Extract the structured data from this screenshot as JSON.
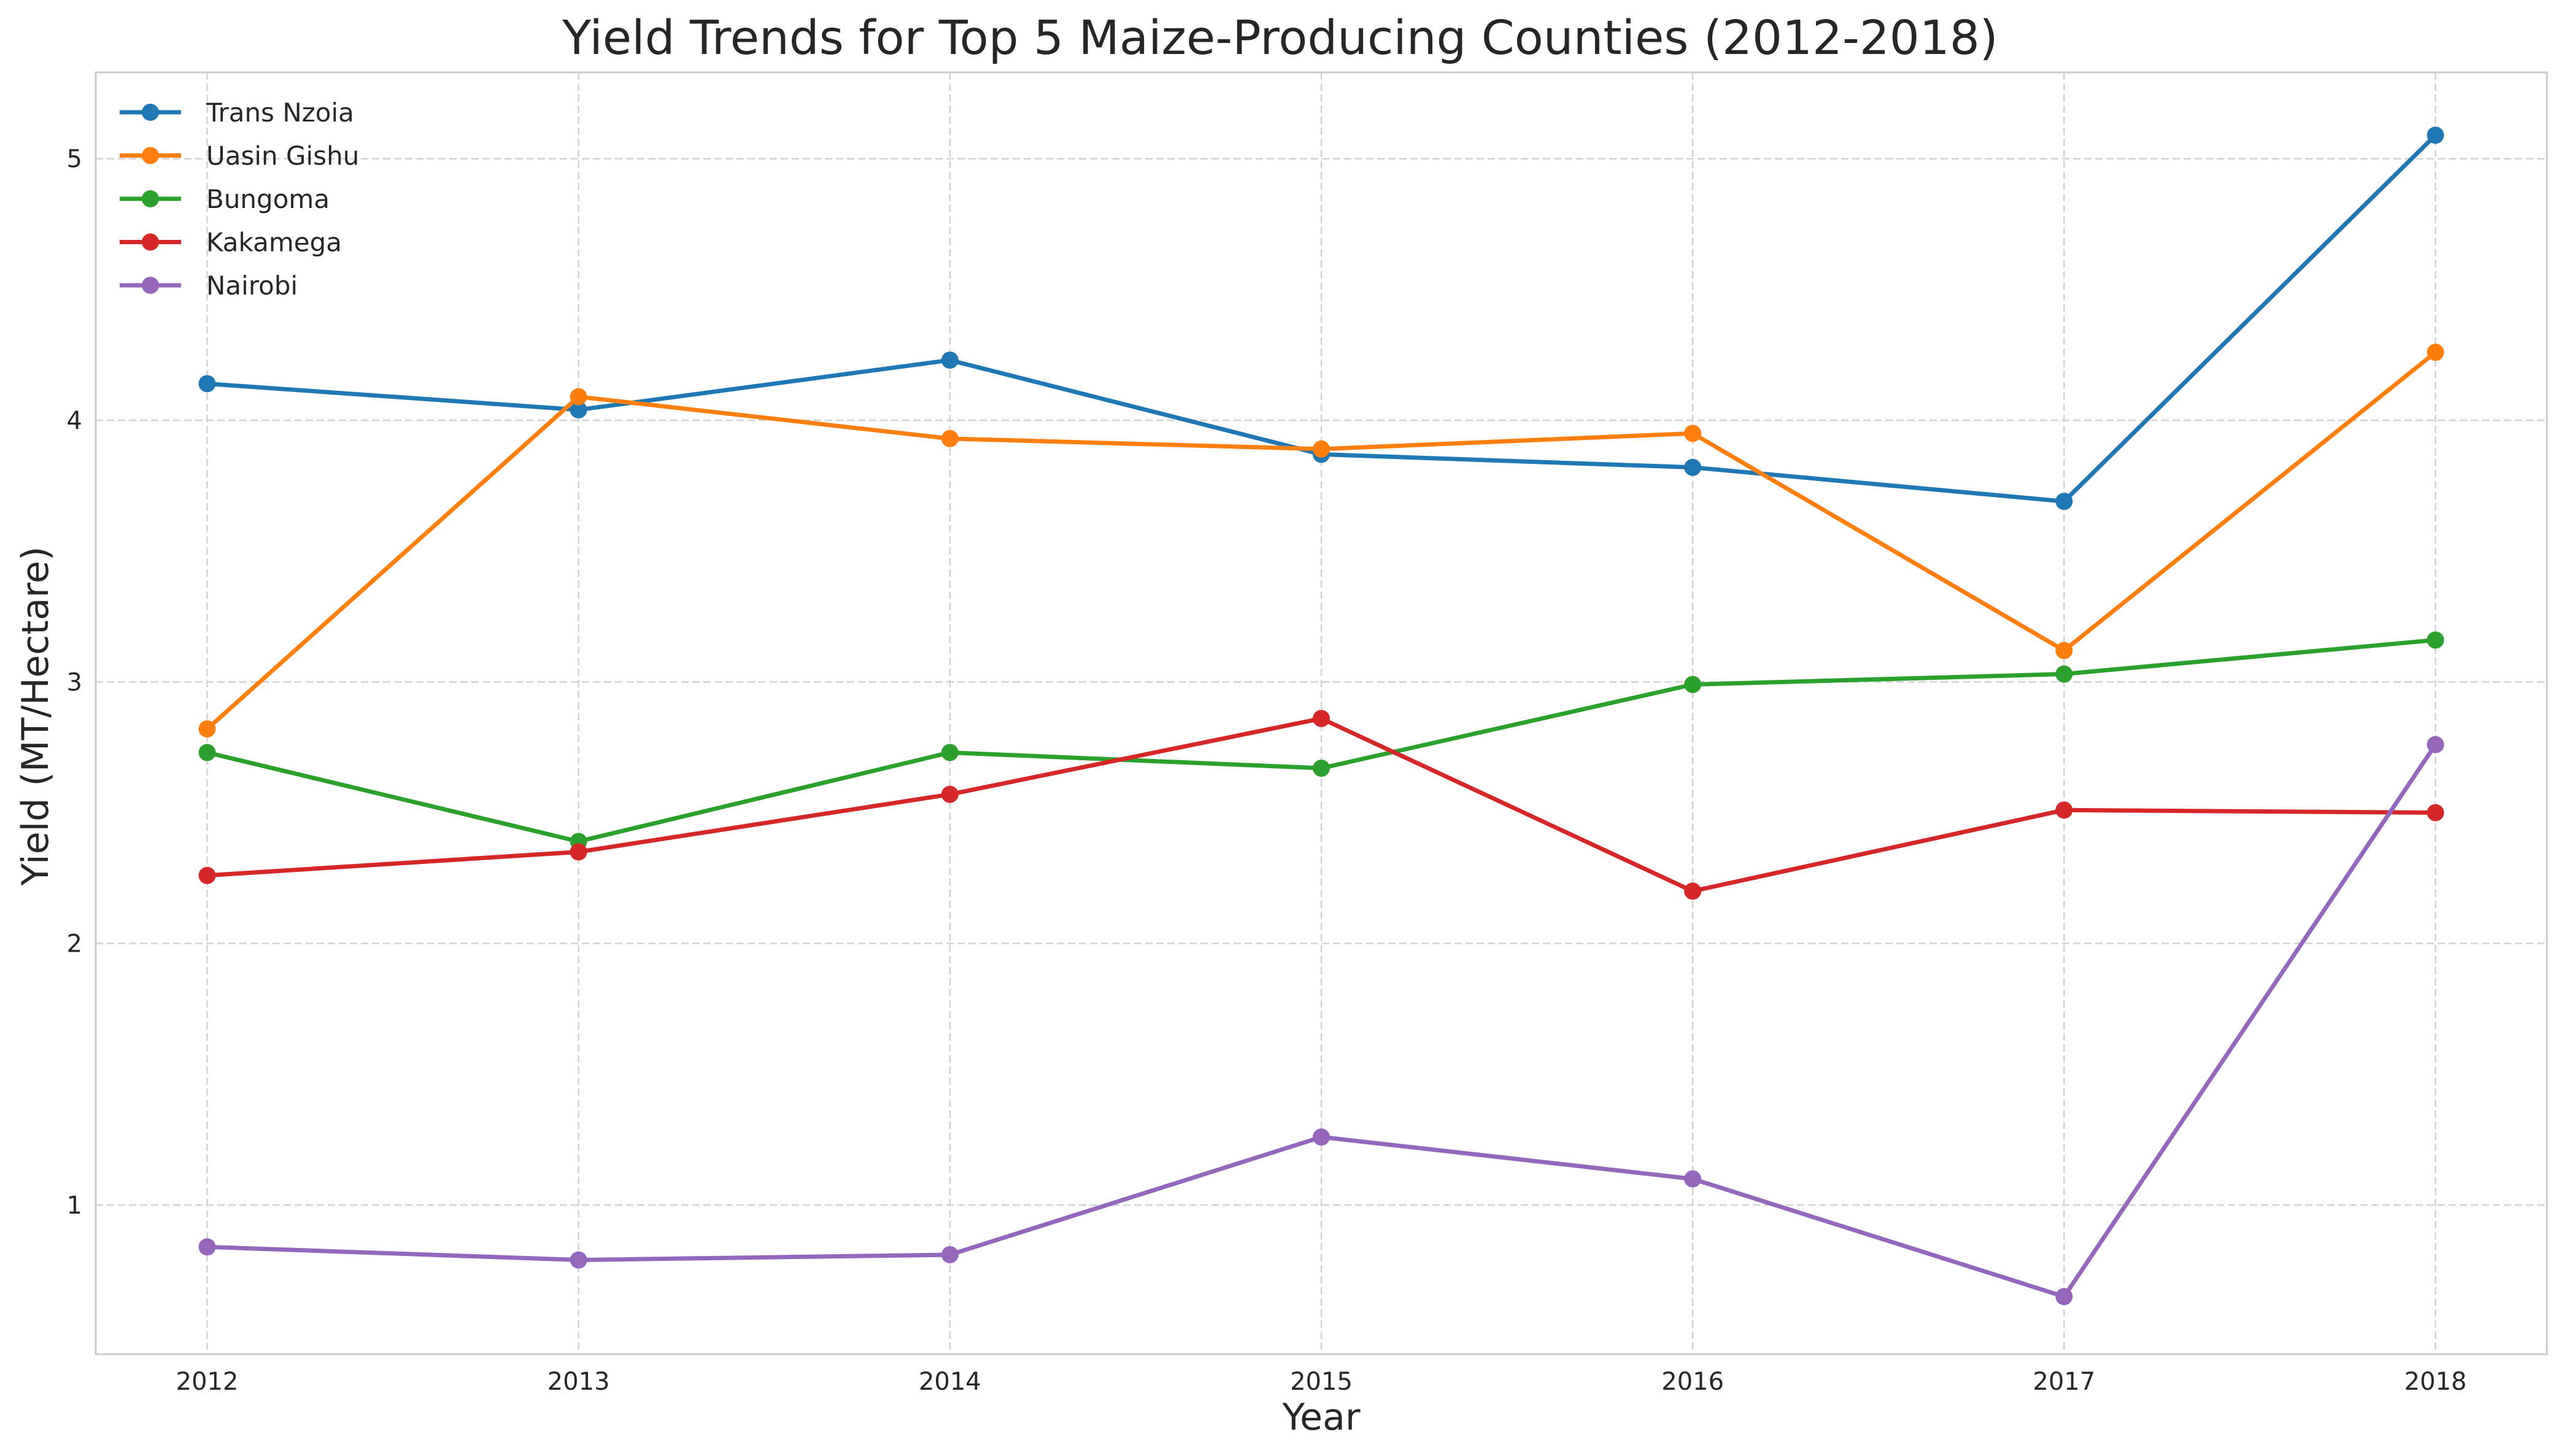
{
  "chart_data": {
    "type": "line",
    "title": "Yield Trends for Top 5 Maize-Producing Counties (2012-2018)",
    "xlabel": "Year",
    "ylabel": "Yield (MT/Hectare)",
    "x": [
      2012,
      2013,
      2014,
      2015,
      2016,
      2017,
      2018
    ],
    "x_tick_labels": [
      "2012",
      "2013",
      "2014",
      "2015",
      "2016",
      "2017",
      "2018"
    ],
    "y_ticks": [
      1,
      2,
      3,
      4,
      5
    ],
    "y_tick_labels": [
      "1",
      "2",
      "3",
      "4",
      "5"
    ],
    "xlim": [
      2011.7,
      2018.3
    ],
    "ylim": [
      0.43,
      5.33
    ],
    "grid": true,
    "legend_position": "top-left",
    "series": [
      {
        "name": "Trans Nzoia",
        "color": "#1f77b4",
        "values": [
          4.14,
          4.04,
          4.23,
          3.87,
          3.82,
          3.69,
          5.09
        ]
      },
      {
        "name": "Uasin Gishu",
        "color": "#ff7f0e",
        "values": [
          2.82,
          4.09,
          3.93,
          3.89,
          3.95,
          3.12,
          4.26
        ]
      },
      {
        "name": "Bungoma",
        "color": "#2ca02c",
        "values": [
          2.73,
          2.39,
          2.73,
          2.67,
          2.99,
          3.03,
          3.16
        ]
      },
      {
        "name": "Kakamega",
        "color": "#d62728",
        "values": [
          2.26,
          2.35,
          2.57,
          2.86,
          2.2,
          2.51,
          2.5
        ]
      },
      {
        "name": "Nairobi",
        "color": "#9467bd",
        "values": [
          0.84,
          0.79,
          0.81,
          1.26,
          1.1,
          0.65,
          2.76
        ]
      }
    ]
  }
}
